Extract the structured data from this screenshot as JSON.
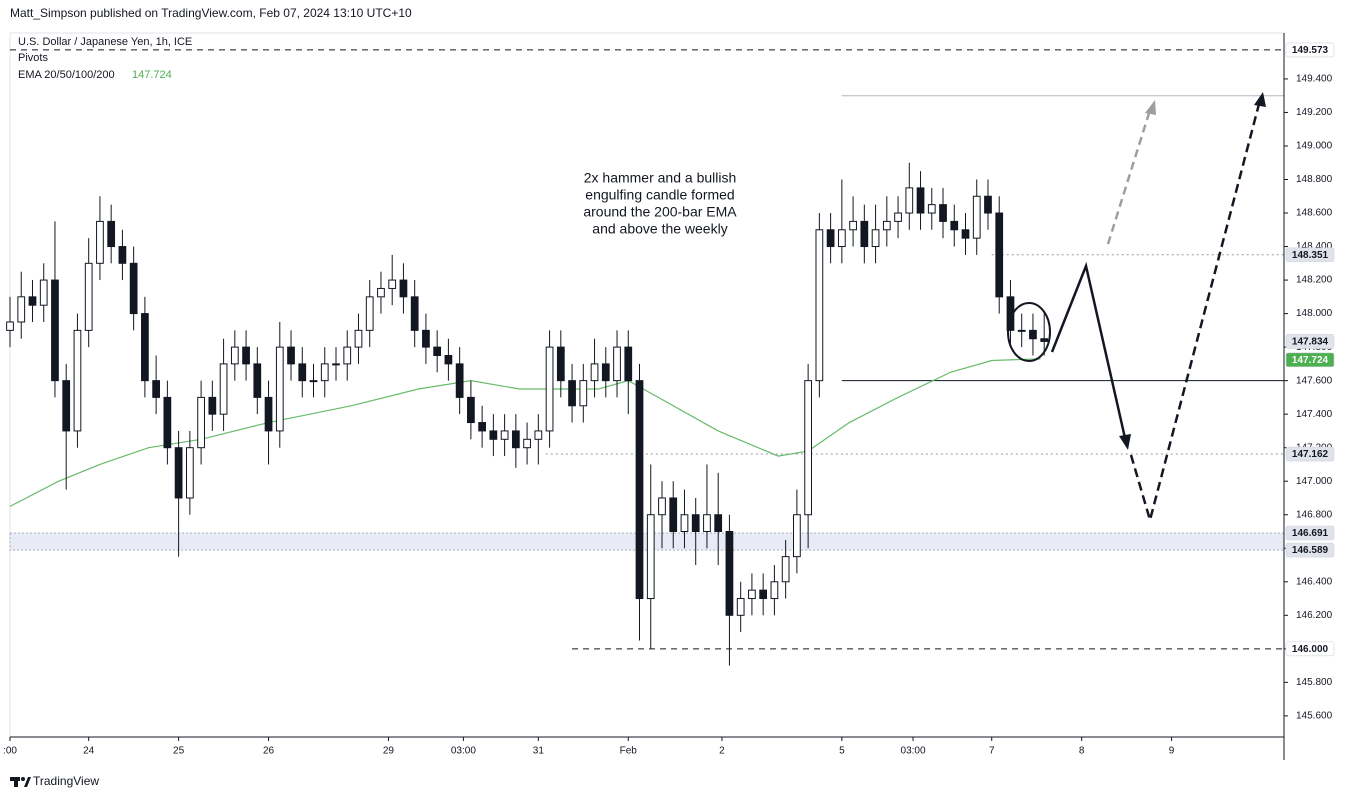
{
  "header": {
    "publisher": "Matt_Simpson published on TradingView.com, Feb 07, 2024 13:10 UTC+10"
  },
  "footer": {
    "brand": "TradingView"
  },
  "chart_data": {
    "type": "candlestick",
    "title": "U.S. Dollar / Japanese Yen, 1h, ICE",
    "indicators": [
      "Pivots"
    ],
    "annotation": [
      "2x hammer and a bullish",
      "engulfing candle formed",
      "around the 200-bar EMA",
      "and above the weekly"
    ],
    "up_color": "#ffffff",
    "down_color": "#131722",
    "xlim": [
      0,
      340
    ],
    "xticks": [
      {
        "value": 0,
        "label": ":00"
      },
      {
        "value": 21,
        "label": "24"
      },
      {
        "value": 45,
        "label": "25"
      },
      {
        "value": 69,
        "label": "26"
      },
      {
        "value": 101,
        "label": "29"
      },
      {
        "value": 121,
        "label": "03:00"
      },
      {
        "value": 141,
        "label": "31"
      },
      {
        "value": 165,
        "label": "Feb"
      },
      {
        "value": 190,
        "label": "2"
      },
      {
        "value": 222,
        "label": "5"
      },
      {
        "value": 241,
        "label": "03:00"
      },
      {
        "value": 262,
        "label": "7"
      },
      {
        "value": 286,
        "label": "8"
      },
      {
        "value": 310,
        "label": "9"
      }
    ],
    "ylim": [
      145.474,
      149.674
    ],
    "yticks": [
      {
        "value": 145.6,
        "label": "145.600"
      },
      {
        "value": 145.8,
        "label": "145.800"
      },
      {
        "value": 146.0,
        "label": "146.000"
      },
      {
        "value": 146.2,
        "label": "146.200"
      },
      {
        "value": 146.4,
        "label": "146.400"
      },
      {
        "value": 146.6,
        "label": "146.600"
      },
      {
        "value": 146.8,
        "label": "146.800"
      },
      {
        "value": 147.0,
        "label": "147.000"
      },
      {
        "value": 147.2,
        "label": "147.200"
      },
      {
        "value": 147.4,
        "label": "147.400"
      },
      {
        "value": 147.6,
        "label": "147.600"
      },
      {
        "value": 147.8,
        "label": "147.800"
      },
      {
        "value": 148.0,
        "label": "148.000"
      },
      {
        "value": 148.2,
        "label": "148.200"
      },
      {
        "value": 148.4,
        "label": "148.400"
      },
      {
        "value": 148.6,
        "label": "148.600"
      },
      {
        "value": 148.8,
        "label": "148.800"
      },
      {
        "value": 149.0,
        "label": "149.000"
      },
      {
        "value": 149.2,
        "label": "149.200"
      },
      {
        "value": 149.4,
        "label": "149.400"
      }
    ],
    "x": [
      0,
      3,
      6,
      9,
      12,
      15,
      18,
      21,
      24,
      27,
      30,
      33,
      36,
      39,
      42,
      45,
      48,
      51,
      54,
      57,
      60,
      63,
      66,
      69,
      72,
      75,
      78,
      81,
      84,
      87,
      90,
      93,
      96,
      99,
      102,
      105,
      108,
      111,
      114,
      117,
      120,
      123,
      126,
      129,
      132,
      135,
      138,
      141,
      144,
      147,
      150,
      153,
      156,
      159,
      162,
      165,
      168,
      171,
      174,
      177,
      180,
      183,
      186,
      189,
      192,
      195,
      198,
      201,
      204,
      207,
      210,
      213,
      216,
      219,
      222,
      225,
      228,
      231,
      234,
      237,
      240,
      243,
      246,
      249,
      252,
      255,
      258,
      261,
      264,
      267,
      270,
      273,
      276
    ],
    "open": [
      147.9,
      147.95,
      148.1,
      148.05,
      148.2,
      147.6,
      147.3,
      147.9,
      148.3,
      148.55,
      148.4,
      148.3,
      148.0,
      147.6,
      147.5,
      147.2,
      146.9,
      147.2,
      147.5,
      147.4,
      147.7,
      147.8,
      147.7,
      147.5,
      147.3,
      147.8,
      147.7,
      147.6,
      147.6,
      147.7,
      147.7,
      147.8,
      147.9,
      148.1,
      148.15,
      148.2,
      148.1,
      147.9,
      147.8,
      147.75,
      147.7,
      147.5,
      147.35,
      147.3,
      147.25,
      147.3,
      147.2,
      147.25,
      147.3,
      147.8,
      147.6,
      147.45,
      147.6,
      147.7,
      147.6,
      147.8,
      147.6,
      146.3,
      146.8,
      146.9,
      146.7,
      146.8,
      146.7,
      146.8,
      146.7,
      146.2,
      146.3,
      146.35,
      146.3,
      146.4,
      146.55,
      146.8,
      147.6,
      148.5,
      148.4,
      148.5,
      148.55,
      148.4,
      148.5,
      148.55,
      148.6,
      148.75,
      148.6,
      148.65,
      148.55,
      148.5,
      148.45,
      148.7,
      148.6,
      148.1,
      147.9,
      147.9,
      147.85
    ],
    "high": [
      148.1,
      148.25,
      148.2,
      148.3,
      148.55,
      147.7,
      148.0,
      148.45,
      148.7,
      148.65,
      148.5,
      148.4,
      148.1,
      147.75,
      147.6,
      147.3,
      147.3,
      147.6,
      147.6,
      147.85,
      147.9,
      147.9,
      147.8,
      147.6,
      147.95,
      147.9,
      147.8,
      147.7,
      147.8,
      147.8,
      147.9,
      148.0,
      148.2,
      148.25,
      148.35,
      148.3,
      148.2,
      148.0,
      147.9,
      147.85,
      147.8,
      147.6,
      147.45,
      147.4,
      147.4,
      147.4,
      147.35,
      147.4,
      147.9,
      147.9,
      147.7,
      147.7,
      147.85,
      147.8,
      147.9,
      147.9,
      147.7,
      147.1,
      147.0,
      147.0,
      146.95,
      146.9,
      147.1,
      147.05,
      146.8,
      146.4,
      146.45,
      146.45,
      146.5,
      146.65,
      146.95,
      147.7,
      148.6,
      148.6,
      148.8,
      148.7,
      148.65,
      148.65,
      148.7,
      148.7,
      148.9,
      148.85,
      148.75,
      148.75,
      148.65,
      148.6,
      148.8,
      148.8,
      148.7,
      148.2,
      148.0,
      148.0,
      148.0
    ],
    "low": [
      147.8,
      147.85,
      147.95,
      147.95,
      147.5,
      146.95,
      147.2,
      147.8,
      148.2,
      148.3,
      148.2,
      147.9,
      147.5,
      147.4,
      147.1,
      146.55,
      146.8,
      147.1,
      147.3,
      147.3,
      147.6,
      147.6,
      147.4,
      147.1,
      147.2,
      147.6,
      147.5,
      147.5,
      147.5,
      147.6,
      147.6,
      147.7,
      147.8,
      148.0,
      148.05,
      148.0,
      147.8,
      147.7,
      147.65,
      147.6,
      147.4,
      147.25,
      147.2,
      147.15,
      147.15,
      147.08,
      147.1,
      147.1,
      147.2,
      147.5,
      147.35,
      147.35,
      147.5,
      147.5,
      147.5,
      147.4,
      146.05,
      146.0,
      146.6,
      146.6,
      146.6,
      146.5,
      146.6,
      146.5,
      145.9,
      146.1,
      146.2,
      146.2,
      146.2,
      146.3,
      146.45,
      146.6,
      147.5,
      148.3,
      148.3,
      148.4,
      148.3,
      148.3,
      148.4,
      148.45,
      148.5,
      148.5,
      148.5,
      148.45,
      148.4,
      148.35,
      148.35,
      148.5,
      148.0,
      147.8,
      147.8,
      147.75,
      147.75
    ],
    "close": [
      147.95,
      148.1,
      148.05,
      148.2,
      147.6,
      147.3,
      147.9,
      148.3,
      148.55,
      148.4,
      148.3,
      148.0,
      147.6,
      147.5,
      147.2,
      146.9,
      147.2,
      147.5,
      147.4,
      147.7,
      147.8,
      147.7,
      147.5,
      147.3,
      147.8,
      147.7,
      147.6,
      147.6,
      147.7,
      147.7,
      147.8,
      147.9,
      148.1,
      148.15,
      148.2,
      148.1,
      147.9,
      147.8,
      147.75,
      147.7,
      147.5,
      147.35,
      147.3,
      147.25,
      147.3,
      147.2,
      147.25,
      147.3,
      147.8,
      147.6,
      147.45,
      147.6,
      147.7,
      147.6,
      147.8,
      147.6,
      146.3,
      146.8,
      146.9,
      146.7,
      146.8,
      146.7,
      146.8,
      146.7,
      146.2,
      146.3,
      146.35,
      146.3,
      146.4,
      146.55,
      146.8,
      147.6,
      148.5,
      148.4,
      148.5,
      148.55,
      148.4,
      148.5,
      148.55,
      148.6,
      148.75,
      148.6,
      148.65,
      148.55,
      148.5,
      148.45,
      148.7,
      148.6,
      148.1,
      147.9,
      147.9,
      147.85,
      147.834
    ],
    "ema": {
      "name": "EMA 20/50/100/200",
      "value": 147.724,
      "color": "#66bb6a",
      "x": [
        0,
        13,
        24,
        37,
        51,
        69,
        91,
        109,
        123,
        136,
        157,
        165,
        173,
        189,
        205,
        213,
        224,
        237,
        251,
        262,
        275
      ],
      "values": [
        146.85,
        147.0,
        147.1,
        147.2,
        147.25,
        147.35,
        147.45,
        147.55,
        147.6,
        147.55,
        147.55,
        147.6,
        147.5,
        147.3,
        147.15,
        147.18,
        147.35,
        147.5,
        147.65,
        147.72,
        147.73
      ]
    },
    "levels": [
      {
        "value": 149.573,
        "style": "dashed",
        "from": 0,
        "color": "#131722"
      },
      {
        "value": 149.3,
        "style": "solid",
        "from": 222,
        "color": "#b2b5be"
      },
      {
        "value": 148.351,
        "style": "dotted",
        "from": 262,
        "color": "#9598a1"
      },
      {
        "value": 147.6,
        "style": "solid",
        "from": 222,
        "color": "#131722"
      },
      {
        "value": 147.162,
        "style": "dotted",
        "from": 143,
        "color": "#9598a1"
      },
      {
        "value": 146.0,
        "style": "dashed",
        "from": 150,
        "color": "#131722"
      }
    ],
    "zone": {
      "values": [
        146.589,
        146.691
      ],
      "color": "#e8eaf6"
    },
    "price_labels": [
      {
        "value": 149.573,
        "bg": "#ffffff",
        "fg": "#131722"
      },
      {
        "value": 148.351,
        "bg": "#e0e3eb",
        "fg": "#131722"
      },
      {
        "value": 147.834,
        "bg": "#e0e3eb",
        "fg": "#131722"
      },
      {
        "value": 147.724,
        "bg": "#4caf50",
        "fg": "#ffffff"
      },
      {
        "value": 147.162,
        "bg": "#e0e3eb",
        "fg": "#131722"
      },
      {
        "value": 146.691,
        "bg": "#e0e3eb",
        "fg": "#131722"
      },
      {
        "value": 146.589,
        "bg": "#e0e3eb",
        "fg": "#131722"
      },
      {
        "value": 146.0,
        "label": "146.000",
        "bg": "#ffffff",
        "fg": "#131722"
      }
    ]
  }
}
